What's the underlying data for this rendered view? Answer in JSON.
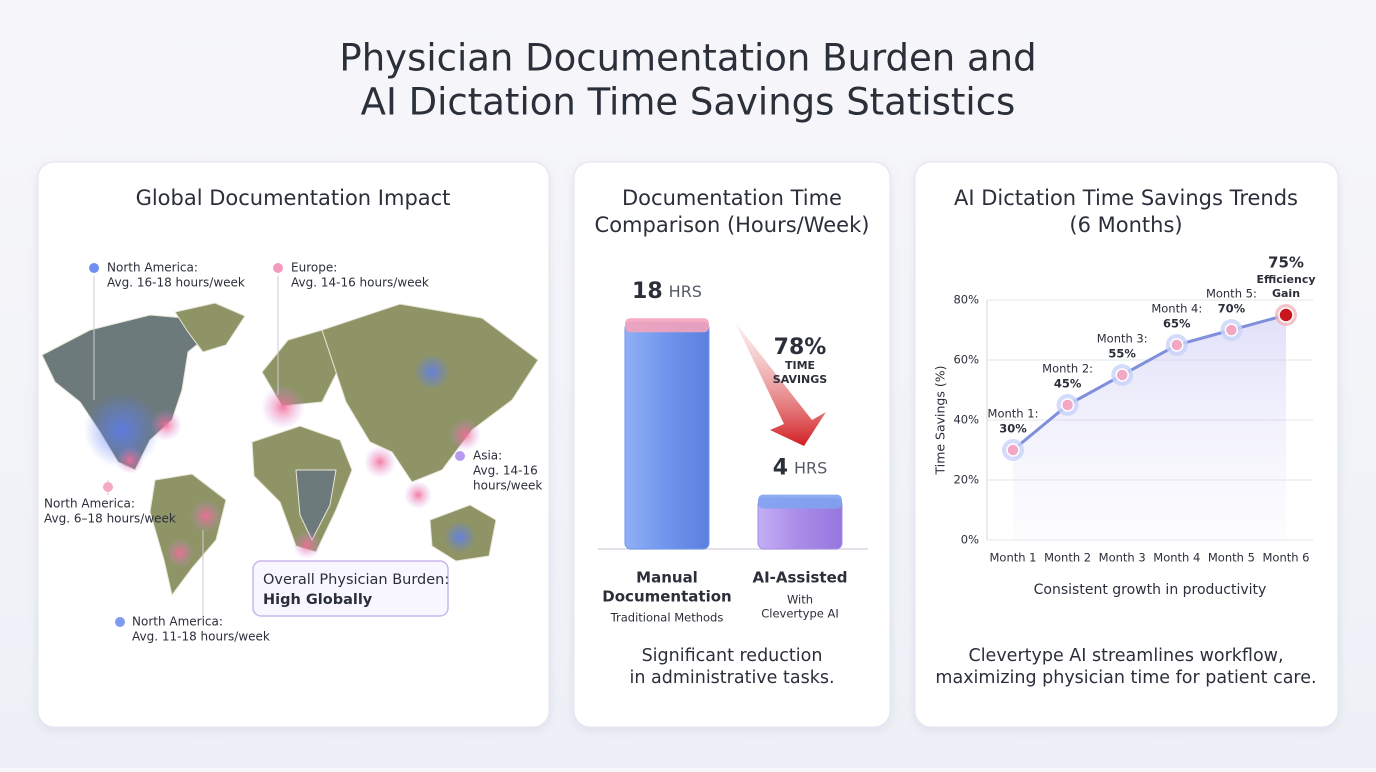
{
  "title": [
    "Physician Documentation Burden and",
    "AI Dictation Time Savings Statistics"
  ],
  "map_panel": {
    "title": "Global Documentation Impact",
    "regions": [
      {
        "lines": [
          "North America:",
          "Avg. 16-18 hours/week"
        ]
      },
      {
        "lines": [
          "Europe:",
          "Avg. 14-16 hours/week"
        ]
      },
      {
        "lines": [
          "Asia:",
          "Avg. 14-16",
          "hours/week"
        ]
      },
      {
        "lines": [
          "North America:",
          "Avg. 6–18 hours/week"
        ]
      },
      {
        "lines": [
          "North America:",
          "Avg. 11-18 hours/week"
        ]
      }
    ],
    "callout": {
      "text": "Overall Physician Burden:",
      "emphasis": "High Globally"
    }
  },
  "chart_data": [
    {
      "type": "bar",
      "title": [
        "Documentation Time",
        "Comparison (Hours/Week)"
      ],
      "categories": [
        [
          "Manual",
          "Documentation"
        ],
        [
          "AI-Assisted"
        ]
      ],
      "sublabels": [
        [
          "Traditional Methods"
        ],
        [
          "With",
          "Clevertype AI"
        ]
      ],
      "values": [
        18,
        4
      ],
      "unit": "HRS",
      "colors": [
        "#6f95ec",
        "#a98be8"
      ],
      "annotation": "78%",
      "annotation_text": [
        "TIME",
        "SAVINGS"
      ],
      "footer": [
        "Significant reduction",
        "in administrative tasks."
      ]
    },
    {
      "type": "line",
      "title": [
        "AI Dictation Time Savings Trends",
        "(6 Months)"
      ],
      "categories": [
        "Month 1",
        "Month 2",
        "Month 3",
        "Month 4",
        "Month 5",
        "Month 6"
      ],
      "values": [
        30,
        45,
        55,
        65,
        70,
        75
      ],
      "value_labels": [
        "30%",
        "45%",
        "55%",
        "65%",
        "70%",
        "75%"
      ],
      "point_labels": [
        [
          "Month 1:"
        ],
        [
          "Month 2:"
        ],
        [
          "Month 3:"
        ],
        [
          "Month 4:"
        ],
        [
          "Month 5:"
        ],
        [
          "Efficiency",
          "Gain"
        ]
      ],
      "color": "#7f8fdc",
      "ylim": [
        0,
        80
      ],
      "yticks": [
        {
          "value": 0,
          "label": "0%"
        },
        {
          "value": 20,
          "label": "20%"
        },
        {
          "value": 40,
          "label": "40%"
        },
        {
          "value": 60,
          "label": "60%"
        },
        {
          "value": 80,
          "label": "80%"
        }
      ],
      "grid": true,
      "ylabel": "Time Savings (%)",
      "xlabel": "Consistent growth in productivity",
      "footer": [
        "Clevertype AI streamlines workflow,",
        "maximizing physician time for patient care."
      ]
    }
  ]
}
